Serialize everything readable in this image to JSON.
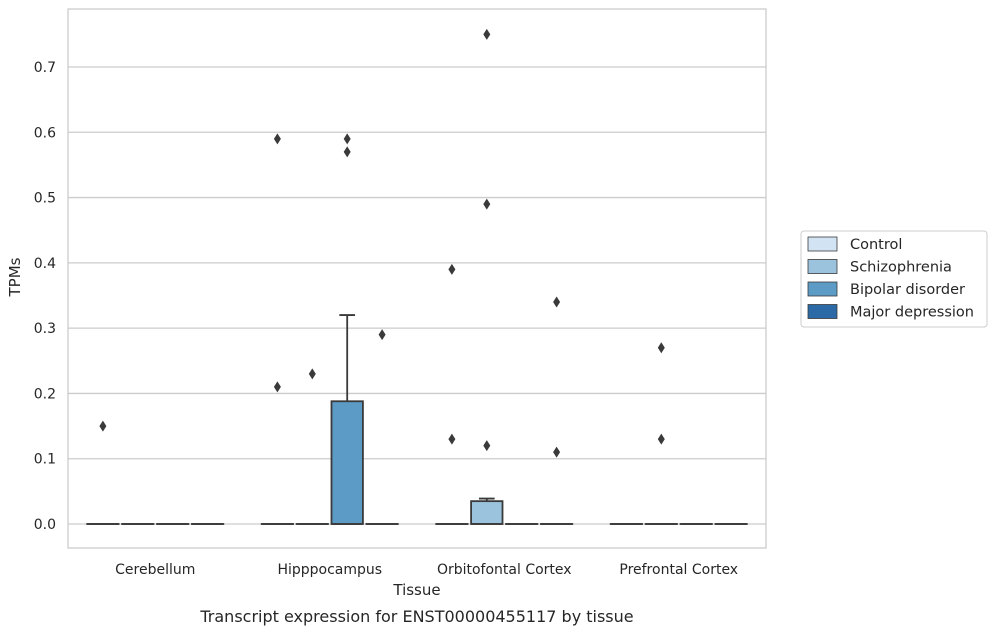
{
  "chart_data": {
    "type": "box",
    "xlabel": "Tissue",
    "ylabel": "TPMs",
    "caption": "Transcript expression for ENST00000455117 by tissue",
    "ylim": [
      -0.037,
      0.79
    ],
    "yticks": [
      0.0,
      0.1,
      0.2,
      0.3,
      0.4,
      0.5,
      0.6,
      0.7
    ],
    "ytick_labels": [
      "0.0",
      "0.1",
      "0.2",
      "0.3",
      "0.4",
      "0.5",
      "0.6",
      "0.7"
    ],
    "grid": "horizontal",
    "legend_position": "right",
    "categories": [
      "Cerebellum",
      "Hipppocampus",
      "Orbitofontal Cortex",
      "Prefrontal Cortex"
    ],
    "series": [
      {
        "name": "Control",
        "color": "#d2e3f3",
        "boxes": [
          {
            "q1": 0,
            "median": 0,
            "q3": 0,
            "whislo": 0,
            "whishi": 0,
            "fliers": [
              0.15
            ]
          },
          {
            "q1": 0,
            "median": 0,
            "q3": 0,
            "whislo": 0,
            "whishi": 0,
            "fliers": [
              0.21,
              0.59
            ]
          },
          {
            "q1": 0,
            "median": 0,
            "q3": 0,
            "whislo": 0,
            "whishi": 0,
            "fliers": [
              0.13,
              0.39
            ]
          },
          {
            "q1": 0,
            "median": 0,
            "q3": 0,
            "whislo": 0,
            "whishi": 0,
            "fliers": []
          }
        ]
      },
      {
        "name": "Schizophrenia",
        "color": "#9cc3dd",
        "boxes": [
          {
            "q1": 0,
            "median": 0,
            "q3": 0,
            "whislo": 0,
            "whishi": 0,
            "fliers": []
          },
          {
            "q1": 0,
            "median": 0,
            "q3": 0,
            "whislo": 0,
            "whishi": 0,
            "fliers": [
              0.23
            ]
          },
          {
            "q1": 0,
            "median": 0,
            "q3": 0.035,
            "whislo": 0,
            "whishi": 0.039,
            "fliers": [
              0.12,
              0.49,
              0.75
            ]
          },
          {
            "q1": 0,
            "median": 0,
            "q3": 0,
            "whislo": 0,
            "whishi": 0,
            "fliers": [
              0.13,
              0.27
            ]
          }
        ]
      },
      {
        "name": "Bipolar disorder",
        "color": "#5c9bc6",
        "boxes": [
          {
            "q1": 0,
            "median": 0,
            "q3": 0,
            "whislo": 0,
            "whishi": 0,
            "fliers": []
          },
          {
            "q1": 0,
            "median": 0,
            "q3": 0.188,
            "whislo": 0,
            "whishi": 0.32,
            "fliers": [
              0.57,
              0.59
            ]
          },
          {
            "q1": 0,
            "median": 0,
            "q3": 0,
            "whislo": 0,
            "whishi": 0,
            "fliers": []
          },
          {
            "q1": 0,
            "median": 0,
            "q3": 0,
            "whislo": 0,
            "whishi": 0,
            "fliers": []
          }
        ]
      },
      {
        "name": "Major depression",
        "color": "#2b6aa6",
        "boxes": [
          {
            "q1": 0,
            "median": 0,
            "q3": 0,
            "whislo": 0,
            "whishi": 0,
            "fliers": []
          },
          {
            "q1": 0,
            "median": 0,
            "q3": 0,
            "whislo": 0,
            "whishi": 0,
            "fliers": [
              0.29
            ]
          },
          {
            "q1": 0,
            "median": 0,
            "q3": 0,
            "whislo": 0,
            "whishi": 0,
            "fliers": [
              0.11,
              0.34
            ]
          },
          {
            "q1": 0,
            "median": 0,
            "q3": 0,
            "whislo": 0,
            "whishi": 0,
            "fliers": []
          }
        ]
      }
    ]
  }
}
